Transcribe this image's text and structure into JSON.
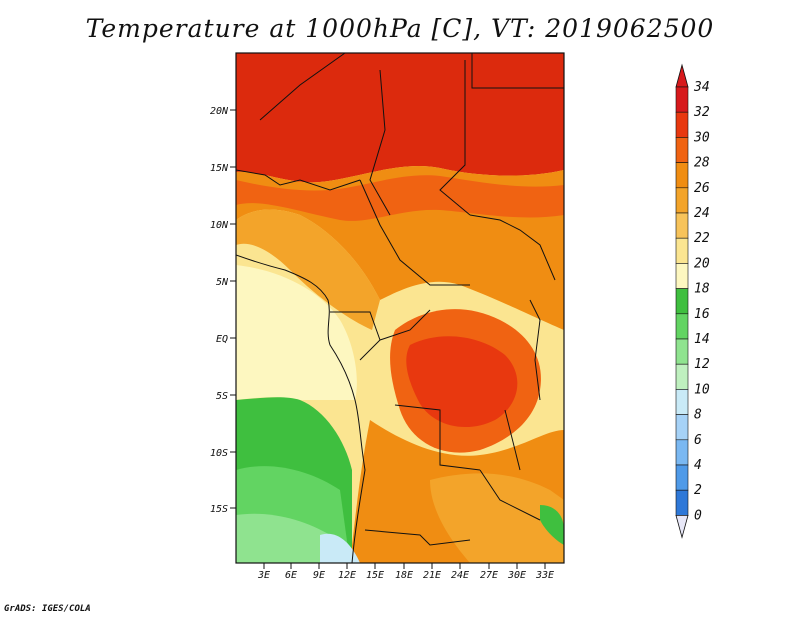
{
  "title": "Temperature at 1000hPa [C], VT: 2019062500",
  "credit": "GrADS: IGES/COLA",
  "lat_labels": [
    "20N",
    "15N",
    "10N",
    "5N",
    "EQ",
    "5S",
    "10S",
    "15S"
  ],
  "lon_labels": [
    "3E",
    "6E",
    "9E",
    "12E",
    "15E",
    "18E",
    "21E",
    "24E",
    "27E",
    "30E",
    "33E"
  ],
  "colorbar": {
    "labels": [
      "34",
      "32",
      "30",
      "28",
      "26",
      "24",
      "22",
      "20",
      "18",
      "16",
      "14",
      "12",
      "10",
      "8",
      "6",
      "4",
      "2",
      "0"
    ],
    "colors": [
      "#d7191c",
      "#e8380f",
      "#f06312",
      "#f08d12",
      "#f3a42a",
      "#f7c35a",
      "#fbe591",
      "#fdf7c0",
      "#3fbf3f",
      "#62d462",
      "#8fe38f",
      "#bff0bf",
      "#c9eaf7",
      "#a6d2f7",
      "#7ab8f2",
      "#4f9ae8",
      "#2e78d8",
      "#1a55c4",
      "#0e33a6",
      "#08157a"
    ],
    "top_color": "#d7191c",
    "bottom_color": "#e8e8f8"
  }
}
